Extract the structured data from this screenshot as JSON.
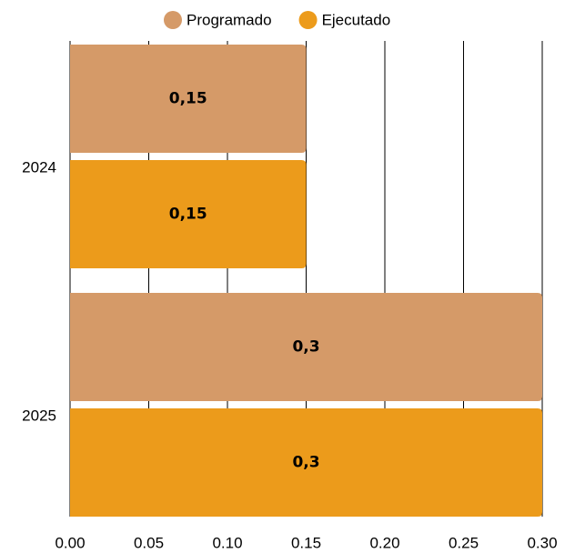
{
  "chart_data": {
    "type": "hbar",
    "categories": [
      "2024",
      "2025"
    ],
    "series": [
      {
        "name": "Programado",
        "color": "#d59a68",
        "values": [
          0.15,
          0.3
        ],
        "value_labels": [
          "0,15",
          "0,3"
        ]
      },
      {
        "name": "Ejecutado",
        "color": "#ec9b1b",
        "values": [
          0.15,
          0.3
        ],
        "value_labels": [
          "0,15",
          "0,3"
        ]
      }
    ],
    "xlim": [
      0,
      0.3
    ],
    "xticks": [
      {
        "value": 0,
        "label": "0.00"
      },
      {
        "value": 0.05,
        "label": "0.05"
      },
      {
        "value": 0.1,
        "label": "0.10"
      },
      {
        "value": 0.15,
        "label": "0.15"
      },
      {
        "value": 0.2,
        "label": "0.20"
      },
      {
        "value": 0.25,
        "label": "0.25"
      },
      {
        "value": 0.3,
        "label": "0.30"
      }
    ],
    "grid": true,
    "legend": "top"
  }
}
